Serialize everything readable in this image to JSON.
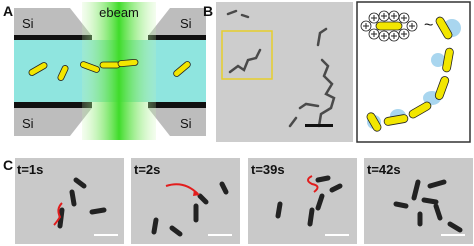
{
  "panel_a": {
    "label": "A",
    "si_labels": [
      "Si",
      "Si",
      "Si",
      "Si"
    ],
    "beam_label": "ebeam"
  },
  "panel_b": {
    "label": "B",
    "inset_symbol": "~"
  },
  "panel_c": {
    "label": "C",
    "frames": [
      "t=1s",
      "t=2s",
      "t=39s",
      "t=42s"
    ]
  }
}
